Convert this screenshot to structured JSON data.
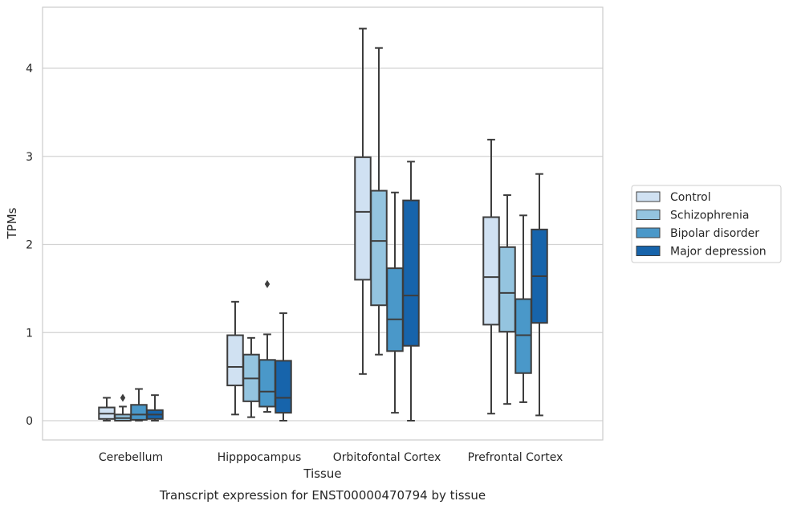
{
  "chart_data": {
    "type": "box",
    "title": "",
    "caption": "Transcript expression for ENST00000470794 by tissue",
    "xlabel": "Tissue",
    "ylabel": "TPMs",
    "ylim": [
      -0.22,
      4.7
    ],
    "yticks": [
      0,
      1,
      2,
      3,
      4
    ],
    "grid": "horizontal",
    "legend_position": "right",
    "categories": [
      "Cerebellum",
      "Hipppocampus",
      "Orbitofontal Cortex",
      "Prefrontal Cortex"
    ],
    "series": [
      {
        "name": "Control",
        "color": "#d0e1f2",
        "boxes": [
          {
            "whislo": 0.0,
            "q1": 0.02,
            "med": 0.08,
            "q3": 0.15,
            "whishi": 0.26,
            "fliers": []
          },
          {
            "whislo": 0.07,
            "q1": 0.4,
            "med": 0.61,
            "q3": 0.97,
            "whishi": 1.35,
            "fliers": []
          },
          {
            "whislo": 0.53,
            "q1": 1.6,
            "med": 2.37,
            "q3": 2.99,
            "whishi": 4.45,
            "fliers": []
          },
          {
            "whislo": 0.08,
            "q1": 1.09,
            "med": 1.63,
            "q3": 2.31,
            "whishi": 3.19,
            "fliers": []
          }
        ]
      },
      {
        "name": "Schizophrenia",
        "color": "#94c4df",
        "boxes": [
          {
            "whislo": 0.0,
            "q1": 0.0,
            "med": 0.03,
            "q3": 0.07,
            "whishi": 0.16,
            "fliers": [
              0.26
            ]
          },
          {
            "whislo": 0.04,
            "q1": 0.22,
            "med": 0.48,
            "q3": 0.75,
            "whishi": 0.94,
            "fliers": []
          },
          {
            "whislo": 0.75,
            "q1": 1.31,
            "med": 2.04,
            "q3": 2.61,
            "whishi": 4.23,
            "fliers": []
          },
          {
            "whislo": 0.19,
            "q1": 1.01,
            "med": 1.45,
            "q3": 1.97,
            "whishi": 2.56,
            "fliers": []
          }
        ]
      },
      {
        "name": "Bipolar disorder",
        "color": "#4a98c9",
        "boxes": [
          {
            "whislo": 0.0,
            "q1": 0.01,
            "med": 0.07,
            "q3": 0.18,
            "whishi": 0.36,
            "fliers": []
          },
          {
            "whislo": 0.1,
            "q1": 0.16,
            "med": 0.33,
            "q3": 0.69,
            "whishi": 0.98,
            "fliers": [
              1.55
            ]
          },
          {
            "whislo": 0.09,
            "q1": 0.79,
            "med": 1.15,
            "q3": 1.73,
            "whishi": 2.59,
            "fliers": []
          },
          {
            "whislo": 0.21,
            "q1": 0.54,
            "med": 0.97,
            "q3": 1.38,
            "whishi": 2.33,
            "fliers": []
          }
        ]
      },
      {
        "name": "Major depression",
        "color": "#1764ab",
        "boxes": [
          {
            "whislo": 0.0,
            "q1": 0.02,
            "med": 0.07,
            "q3": 0.12,
            "whishi": 0.29,
            "fliers": []
          },
          {
            "whislo": 0.0,
            "q1": 0.09,
            "med": 0.26,
            "q3": 0.68,
            "whishi": 1.22,
            "fliers": []
          },
          {
            "whislo": 0.0,
            "q1": 0.85,
            "med": 1.42,
            "q3": 2.5,
            "whishi": 2.94,
            "fliers": []
          },
          {
            "whislo": 0.06,
            "q1": 1.11,
            "med": 1.64,
            "q3": 2.17,
            "whishi": 2.8,
            "fliers": []
          }
        ]
      }
    ]
  }
}
